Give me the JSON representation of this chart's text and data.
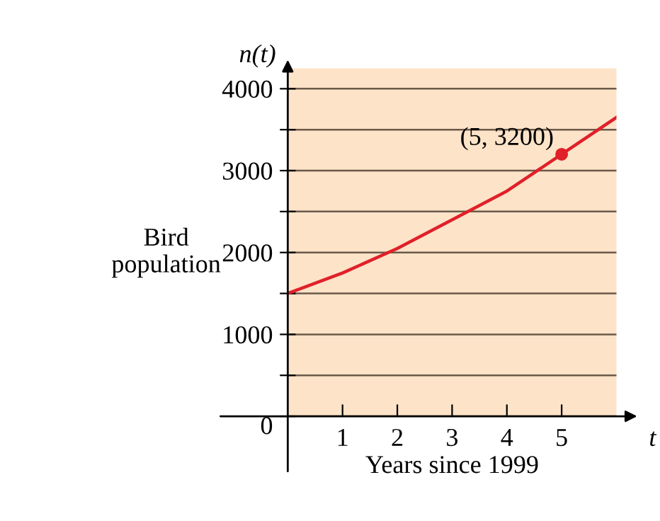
{
  "chart_data": {
    "type": "line",
    "xlabel": "Years since 1999",
    "ylabel": "Bird\npopulation",
    "x": [
      0,
      1,
      2,
      3,
      4,
      5,
      6
    ],
    "series": [
      {
        "color": "#e0202a",
        "values": [
          1500,
          1750,
          2050,
          2400,
          2750,
          3200,
          3650
        ]
      },
      {
        "type": "scatter",
        "color": "#e0202a",
        "x": [
          5
        ],
        "values": [
          3200
        ],
        "marker": "circle"
      }
    ],
    "xlim": [
      0,
      6
    ],
    "ylim": [
      0,
      4250
    ],
    "xticks": [
      1,
      2,
      3,
      4,
      5
    ],
    "yticks": [
      {
        "value": 0,
        "label": "0"
      },
      {
        "value": 500,
        "label": null
      },
      1000,
      {
        "value": 1500,
        "label": null
      },
      2000,
      {
        "value": 2500,
        "label": null
      },
      3000,
      {
        "value": 3500,
        "label": null
      },
      4000
    ],
    "grid": "y",
    "annotations": [
      {
        "text": "(5, 3200)",
        "x": 5,
        "y": 3200
      },
      "n(t)",
      "t"
    ]
  }
}
